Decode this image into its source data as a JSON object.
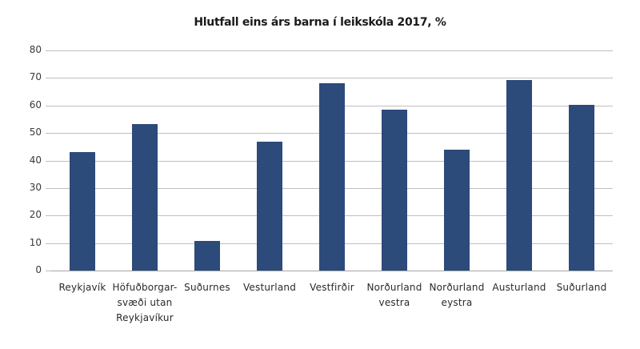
{
  "chart_data": {
    "type": "bar",
    "title": "Hlutfall eins árs barna í leikskóla 2017, %",
    "xlabel": "",
    "ylabel": "",
    "ylim": [
      0,
      80
    ],
    "yticks": [
      "0",
      "10",
      "20",
      "30",
      "40",
      "50",
      "60",
      "70",
      "80"
    ],
    "grid": true,
    "legend": null,
    "bar_color": "#2c4a7a",
    "categories": [
      "Reykjavík",
      "Höfuðborgar-\nsvæði utan\nReykjavíkur",
      "Suðurnes",
      "Vesturland",
      "Vestfirðir",
      "Norðurland\nvestra",
      "Norðurland\neystra",
      "Austurland",
      "Suðurland"
    ],
    "values": [
      43.1,
      53.3,
      10.8,
      46.9,
      68.0,
      58.4,
      43.8,
      69.1,
      60.1
    ]
  }
}
